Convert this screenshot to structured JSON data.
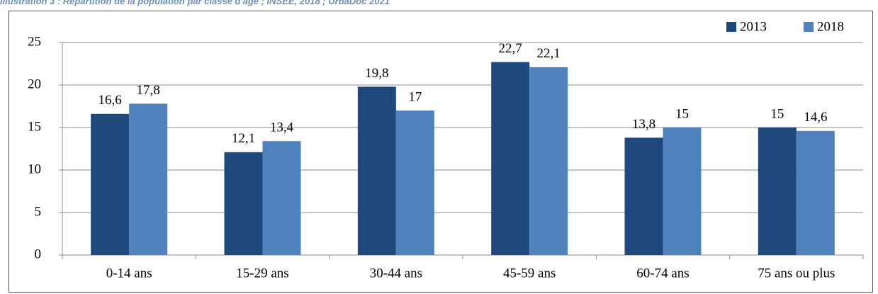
{
  "caption": "Illustration 3 : Répartition de la population par classe d'âge ; INSEE, 2018 ; UrbaDoc 2021",
  "chart_data": {
    "type": "bar",
    "categories": [
      "0-14 ans",
      "15-29 ans",
      "30-44 ans",
      "45-59 ans",
      "60-74 ans",
      "75 ans ou plus"
    ],
    "series": [
      {
        "name": "2013",
        "color": "#1f497d",
        "values": [
          16.6,
          12.1,
          19.8,
          22.7,
          13.8,
          15
        ],
        "value_labels": [
          "16,6",
          "12,1",
          "19,8",
          "22,7",
          "13,8",
          "15"
        ]
      },
      {
        "name": "2018",
        "color": "#4f81bd",
        "values": [
          17.8,
          13.4,
          17,
          22.1,
          15,
          14.6
        ],
        "value_labels": [
          "17,8",
          "13,4",
          "17",
          "22,1",
          "15",
          "14,6"
        ]
      }
    ],
    "ylim": [
      0,
      25
    ],
    "yticks": [
      0,
      5,
      10,
      15,
      20,
      25
    ],
    "grid": true,
    "legend": "top-right"
  }
}
